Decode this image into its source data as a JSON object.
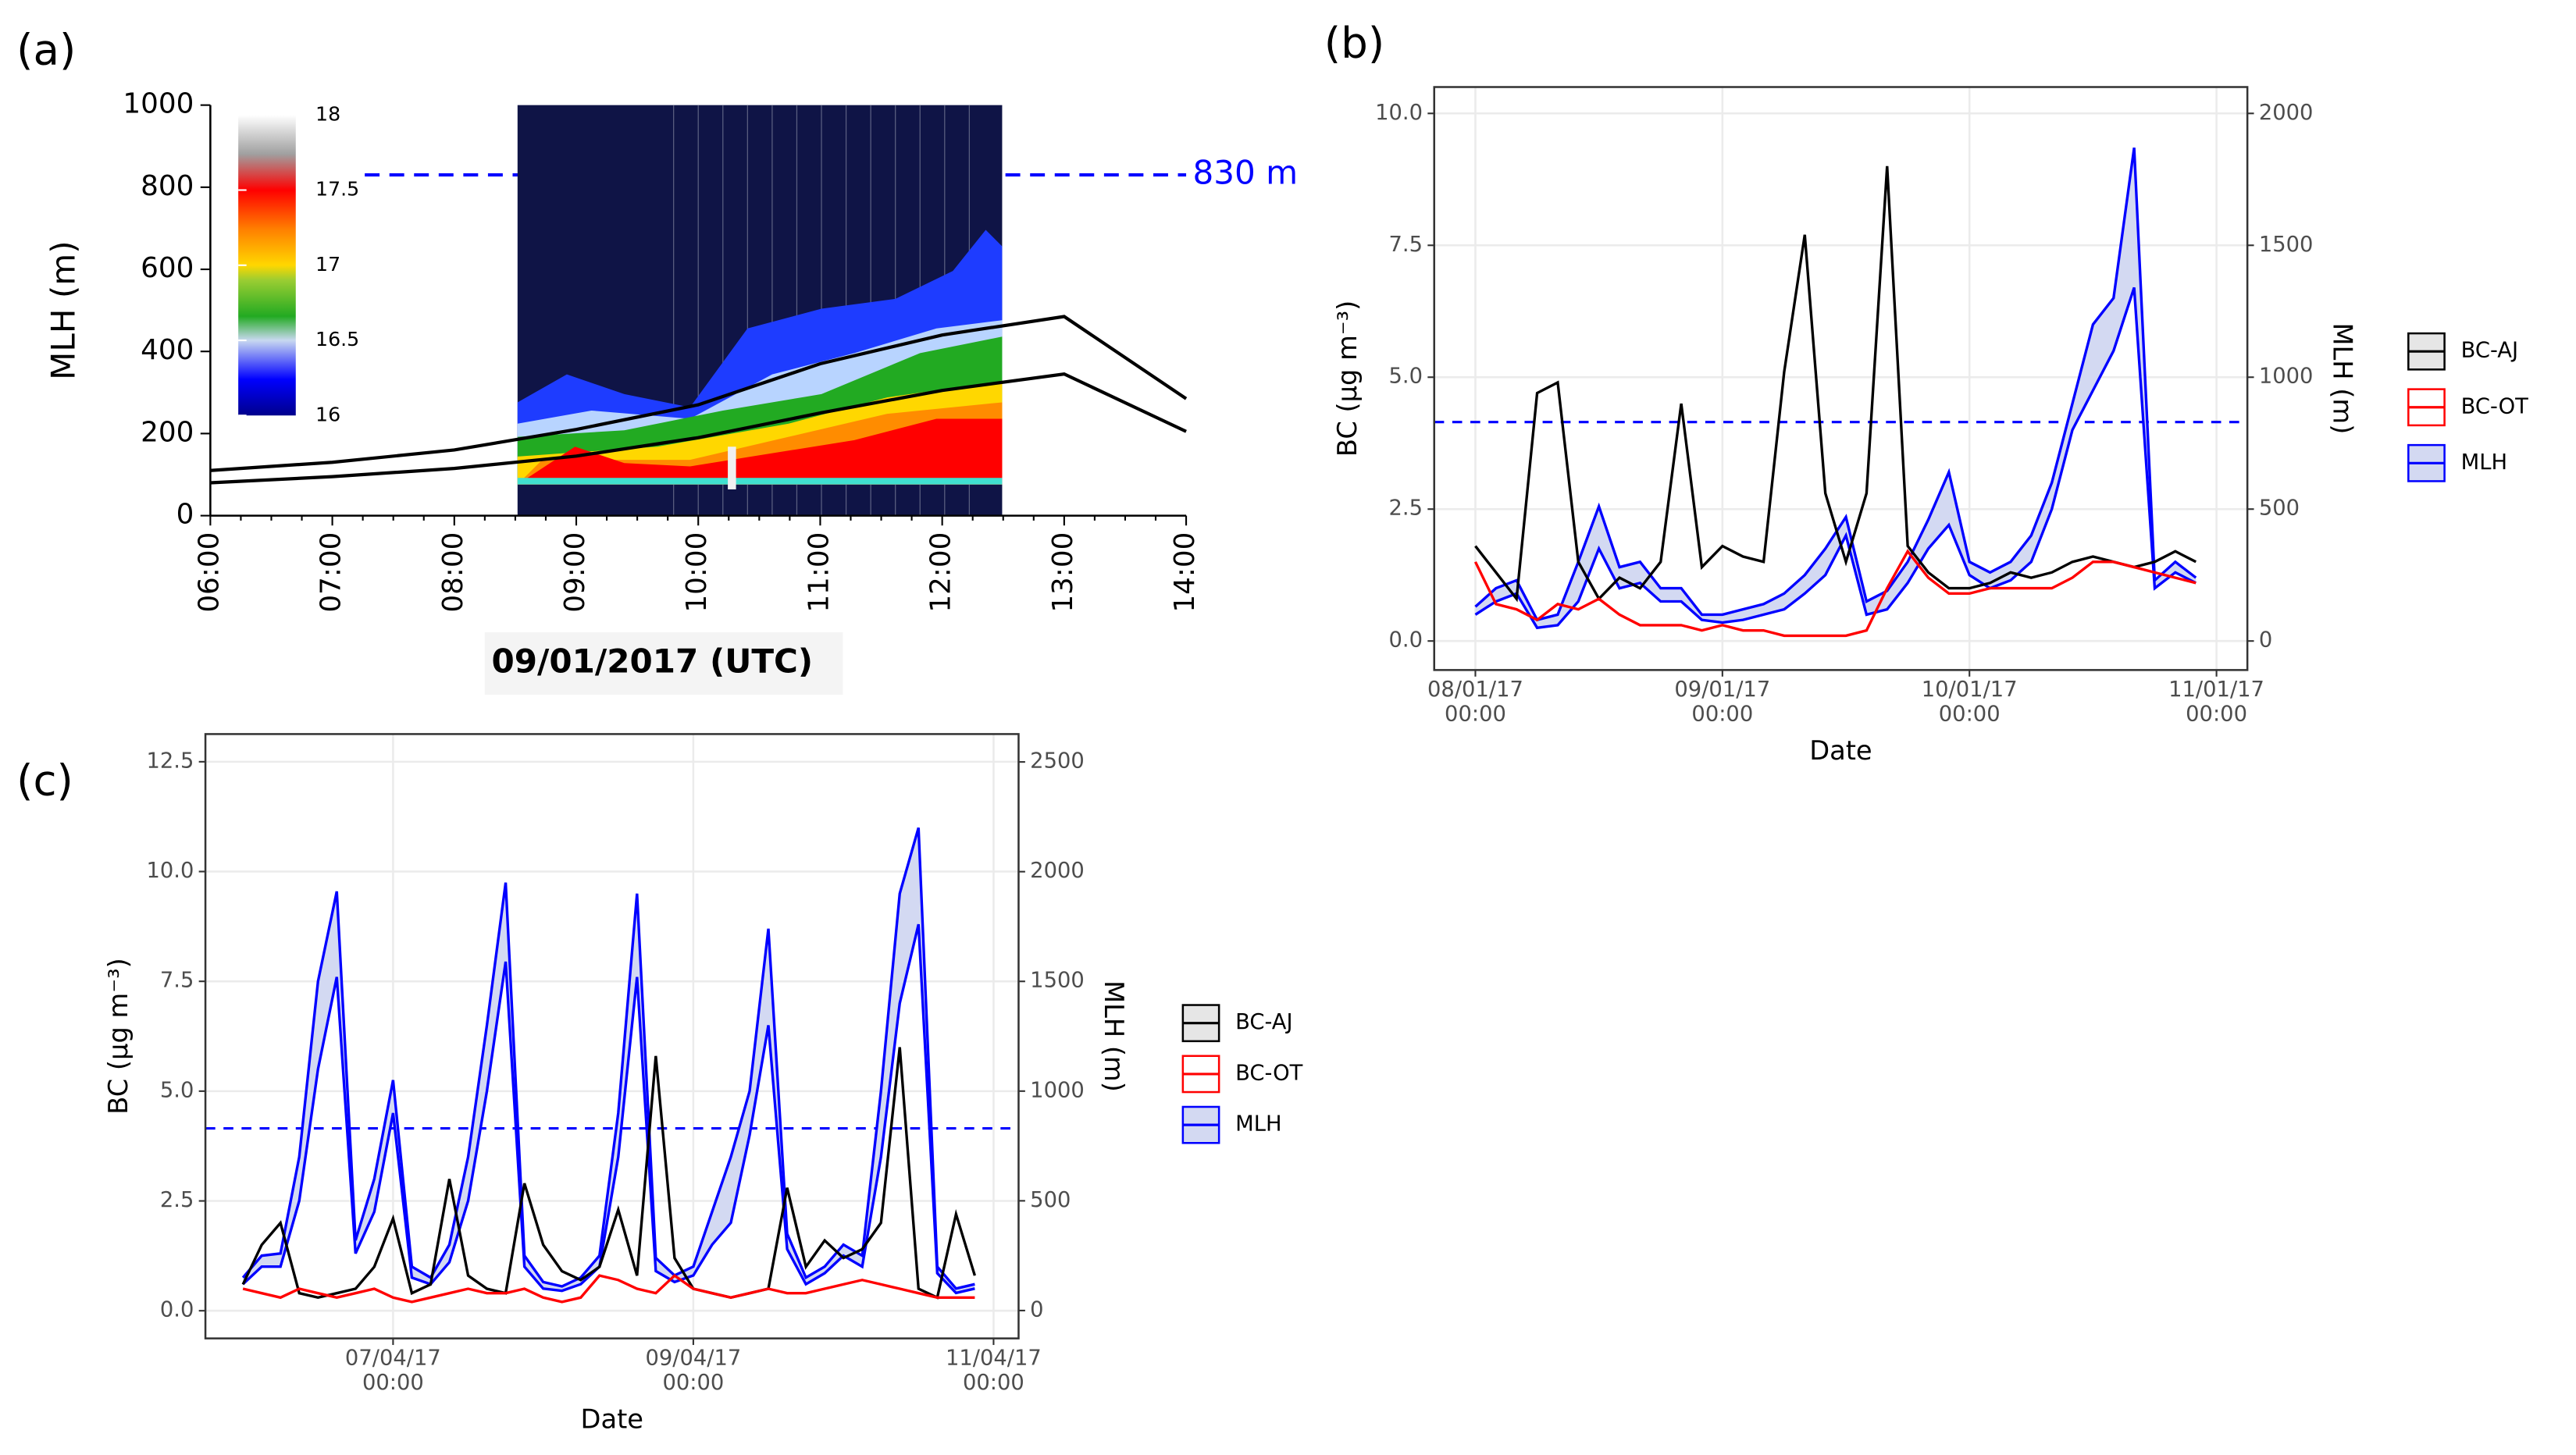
{
  "chart_data": [
    {
      "type": "line",
      "panel_label": "(a)",
      "y_label": "MLH (m)",
      "x_label": "09/01/2017 (UTC)",
      "categories": [
        "06:00",
        "07:00",
        "08:00",
        "09:00",
        "10:00",
        "11:00",
        "12:00",
        "13:00",
        "14:00"
      ],
      "series": [
        {
          "color": "#000000",
          "values": [
            110,
            130,
            160,
            210,
            270,
            370,
            440,
            485,
            285
          ]
        },
        {
          "color": "#000000",
          "values": [
            80,
            95,
            115,
            145,
            190,
            250,
            305,
            345,
            205
          ]
        }
      ],
      "ylim": [
        0,
        1000
      ],
      "yticks": [
        0,
        200,
        400,
        600,
        800,
        1000
      ],
      "reference_line": {
        "value": 830,
        "label": "830 m",
        "color": "#0000ff"
      },
      "colorbar": {
        "lim": [
          16,
          18
        ],
        "ticks": [
          16,
          16.5,
          17,
          17.5,
          18
        ]
      }
    },
    {
      "type": "line",
      "panel_label": "(b)",
      "y_label": "BC (µg m⁻³)",
      "y2_label": "MLH (m)",
      "x_label": "Date",
      "x": [
        "08/01/17 00:00",
        "08/01/17 02:00",
        "08/01/17 04:00",
        "08/01/17 06:00",
        "08/01/17 08:00",
        "08/01/17 10:00",
        "08/01/17 12:00",
        "08/01/17 14:00",
        "08/01/17 16:00",
        "08/01/17 18:00",
        "08/01/17 20:00",
        "08/01/17 22:00",
        "09/01/17 00:00",
        "09/01/17 02:00",
        "09/01/17 04:00",
        "09/01/17 06:00",
        "09/01/17 08:00",
        "09/01/17 10:00",
        "09/01/17 12:00",
        "09/01/17 14:00",
        "09/01/17 16:00",
        "09/01/17 18:00",
        "09/01/17 20:00",
        "09/01/17 22:00",
        "10/01/17 00:00",
        "10/01/17 02:00",
        "10/01/17 04:00",
        "10/01/17 06:00",
        "10/01/17 08:00",
        "10/01/17 10:00",
        "10/01/17 12:00",
        "10/01/17 14:00",
        "10/01/17 16:00",
        "10/01/17 18:00",
        "10/01/17 20:00",
        "10/01/17 22:00"
      ],
      "series": [
        {
          "name": "BC-AJ",
          "color": "#000000",
          "fill": "#e6e6e6",
          "values": [
            1.8,
            1.3,
            0.8,
            4.7,
            4.9,
            1.5,
            0.8,
            1.2,
            1.0,
            1.5,
            4.5,
            1.4,
            1.8,
            1.6,
            1.5,
            5.1,
            7.7,
            2.8,
            1.5,
            2.8,
            9.0,
            1.8,
            1.3,
            1.0,
            1.0,
            1.1,
            1.3,
            1.2,
            1.3,
            1.5,
            1.6,
            1.5,
            1.4,
            1.5,
            1.7,
            1.5
          ]
        },
        {
          "name": "BC-OT",
          "color": "#ff0000",
          "fill": "#ffffff",
          "values": [
            1.5,
            0.7,
            0.6,
            0.4,
            0.7,
            0.6,
            0.8,
            0.5,
            0.3,
            0.3,
            0.3,
            0.2,
            0.3,
            0.2,
            0.2,
            0.1,
            0.1,
            0.1,
            0.1,
            0.2,
            1.0,
            1.7,
            1.2,
            0.9,
            0.9,
            1.0,
            1.0,
            1.0,
            1.0,
            1.2,
            1.5,
            1.5,
            1.4,
            1.3,
            1.2,
            1.1
          ]
        },
        {
          "name": "MLH",
          "color": "#0000ff",
          "fill": "#d3d9f2",
          "axis": "y2",
          "upper": [
            130,
            200,
            230,
            80,
            100,
            300,
            510,
            280,
            300,
            200,
            200,
            100,
            100,
            120,
            140,
            180,
            250,
            350,
            470,
            150,
            190,
            300,
            460,
            640,
            300,
            260,
            300,
            400,
            600,
            900,
            1200,
            1300,
            1870,
            230,
            300,
            240
          ],
          "lower": [
            100,
            150,
            180,
            50,
            60,
            150,
            350,
            200,
            220,
            150,
            150,
            80,
            70,
            80,
            100,
            120,
            180,
            250,
            400,
            100,
            120,
            220,
            350,
            440,
            250,
            200,
            230,
            300,
            500,
            800,
            950,
            1100,
            1340,
            200,
            260,
            220
          ]
        }
      ],
      "xlim": [
        "07/01/17 20:00",
        "11/01/17 03:00"
      ],
      "xticks": [
        {
          "value": "08/01/17 00:00",
          "label": "08/01/17\n00:00"
        },
        {
          "value": "09/01/17 00:00",
          "label": "09/01/17\n00:00"
        },
        {
          "value": "10/01/17 00:00",
          "label": "10/01/17\n00:00"
        },
        {
          "value": "11/01/17 00:00",
          "label": "11/01/17\n00:00"
        }
      ],
      "ylim": [
        -0.55,
        10.5
      ],
      "yticks": [
        {
          "value": 0,
          "label": "0.0"
        },
        {
          "value": 2.5,
          "label": "2.5"
        },
        {
          "value": 5,
          "label": "5.0"
        },
        {
          "value": 7.5,
          "label": "7.5"
        },
        {
          "value": 10,
          "label": "10.0"
        }
      ],
      "y2lim": [
        -110,
        2100
      ],
      "y2ticks": [
        0,
        500,
        1000,
        1500,
        2000
      ],
      "reference_line": {
        "value": 830,
        "axis": "y2",
        "color": "#0000ff"
      },
      "grid": true
    },
    {
      "type": "line",
      "panel_label": "(c)",
      "y_label": "BC (µg m⁻³)",
      "y2_label": "MLH (m)",
      "x_label": "Date",
      "x": [
        "06/04/17 00:00",
        "06/04/17 03:00",
        "06/04/17 06:00",
        "06/04/17 09:00",
        "06/04/17 12:00",
        "06/04/17 15:00",
        "06/04/17 18:00",
        "06/04/17 21:00",
        "07/04/17 00:00",
        "07/04/17 03:00",
        "07/04/17 06:00",
        "07/04/17 09:00",
        "07/04/17 12:00",
        "07/04/17 15:00",
        "07/04/17 18:00",
        "07/04/17 21:00",
        "08/04/17 00:00",
        "08/04/17 03:00",
        "08/04/17 06:00",
        "08/04/17 09:00",
        "08/04/17 12:00",
        "08/04/17 15:00",
        "08/04/17 18:00",
        "08/04/17 21:00",
        "09/04/17 00:00",
        "09/04/17 03:00",
        "09/04/17 06:00",
        "09/04/17 09:00",
        "09/04/17 12:00",
        "09/04/17 15:00",
        "09/04/17 18:00",
        "09/04/17 21:00",
        "10/04/17 00:00",
        "10/04/17 03:00",
        "10/04/17 06:00",
        "10/04/17 09:00",
        "10/04/17 12:00",
        "10/04/17 15:00",
        "10/04/17 18:00",
        "10/04/17 21:00"
      ],
      "series": [
        {
          "name": "BC-AJ",
          "color": "#000000",
          "fill": "#e6e6e6",
          "values": [
            0.6,
            1.5,
            2.0,
            0.4,
            0.3,
            0.4,
            0.5,
            1.0,
            2.1,
            0.4,
            0.6,
            3.0,
            0.8,
            0.5,
            0.4,
            2.9,
            1.5,
            0.9,
            0.7,
            1.0,
            2.3,
            0.8,
            5.8,
            1.2,
            0.5,
            0.4,
            0.3,
            0.4,
            0.5,
            2.8,
            1.0,
            1.6,
            1.2,
            1.4,
            2.0,
            6.0,
            0.5,
            0.3,
            2.2,
            0.8
          ]
        },
        {
          "name": "BC-OT",
          "color": "#ff0000",
          "fill": "#ffffff",
          "values": [
            0.5,
            0.4,
            0.3,
            0.5,
            0.4,
            0.3,
            0.4,
            0.5,
            0.3,
            0.2,
            0.3,
            0.4,
            0.5,
            0.4,
            0.4,
            0.5,
            0.3,
            0.2,
            0.3,
            0.8,
            0.7,
            0.5,
            0.4,
            0.8,
            0.5,
            0.4,
            0.3,
            0.4,
            0.5,
            0.4,
            0.4,
            0.5,
            0.6,
            0.7,
            0.6,
            0.5,
            0.4,
            0.3,
            0.3,
            0.3
          ]
        },
        {
          "name": "MLH",
          "color": "#0000ff",
          "fill": "#d3d9f2",
          "axis": "y2",
          "upper": [
            150,
            250,
            260,
            700,
            1500,
            1910,
            320,
            600,
            1050,
            200,
            150,
            300,
            700,
            1300,
            1950,
            250,
            130,
            110,
            150,
            250,
            900,
            1900,
            240,
            160,
            200,
            450,
            700,
            1000,
            1740,
            350,
            150,
            200,
            300,
            250,
            1000,
            1900,
            2200,
            200,
            100,
            120
          ],
          "lower": [
            120,
            200,
            200,
            500,
            1100,
            1520,
            260,
            450,
            900,
            150,
            120,
            220,
            500,
            1000,
            1590,
            200,
            100,
            90,
            120,
            200,
            700,
            1520,
            180,
            130,
            160,
            300,
            400,
            800,
            1300,
            280,
            120,
            170,
            250,
            200,
            700,
            1400,
            1760,
            170,
            80,
            100
          ]
        }
      ],
      "xlim": [
        "05/04/17 18:00",
        "11/04/17 04:00"
      ],
      "xticks": [
        {
          "value": "07/04/17 00:00",
          "label": "07/04/17\n00:00"
        },
        {
          "value": "09/04/17 00:00",
          "label": "09/04/17\n00:00"
        },
        {
          "value": "11/04/17 00:00",
          "label": "11/04/17\n00:00"
        }
      ],
      "ylim": [
        -0.63,
        13.13
      ],
      "yticks": [
        {
          "value": 0,
          "label": "0.0"
        },
        {
          "value": 2.5,
          "label": "2.5"
        },
        {
          "value": 5,
          "label": "5.0"
        },
        {
          "value": 7.5,
          "label": "7.5"
        },
        {
          "value": 10,
          "label": "10.0"
        },
        {
          "value": 12.5,
          "label": "12.5"
        }
      ],
      "y2lim": [
        -127,
        2627
      ],
      "y2ticks": [
        0,
        500,
        1000,
        1500,
        2000,
        2500
      ],
      "reference_line": {
        "value": 830,
        "axis": "y2",
        "color": "#0000ff"
      },
      "grid": true
    }
  ]
}
